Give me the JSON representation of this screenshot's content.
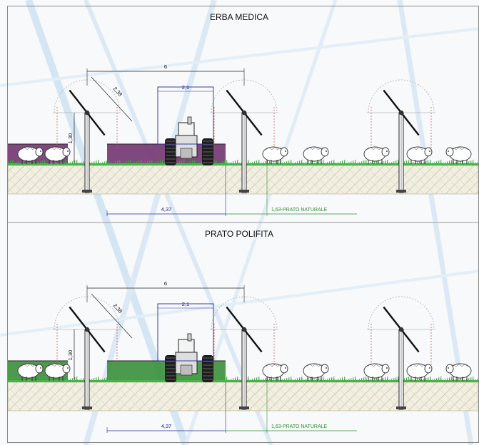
{
  "panels": [
    {
      "title": "ERBA MEDICA",
      "dims": {
        "span": "6",
        "tractor": "2,1",
        "panel": "2,38",
        "height": "1,30",
        "strip": "4,37",
        "meadow": "1,63-PRATO NATURALE"
      },
      "crop_color": "#6a2a6a"
    },
    {
      "title": "PRATO POLIFITA",
      "dims": {
        "span": "6",
        "tractor": "2,1",
        "panel": "2,38",
        "height": "1,30",
        "strip": "4,37",
        "meadow": "1,63-PRATO NATURALE"
      },
      "crop_color": "#2e8a2e"
    }
  ],
  "icons": [
    "solar-tracker-icon",
    "tractor-icon",
    "sheep-icon",
    "grass-icon"
  ]
}
